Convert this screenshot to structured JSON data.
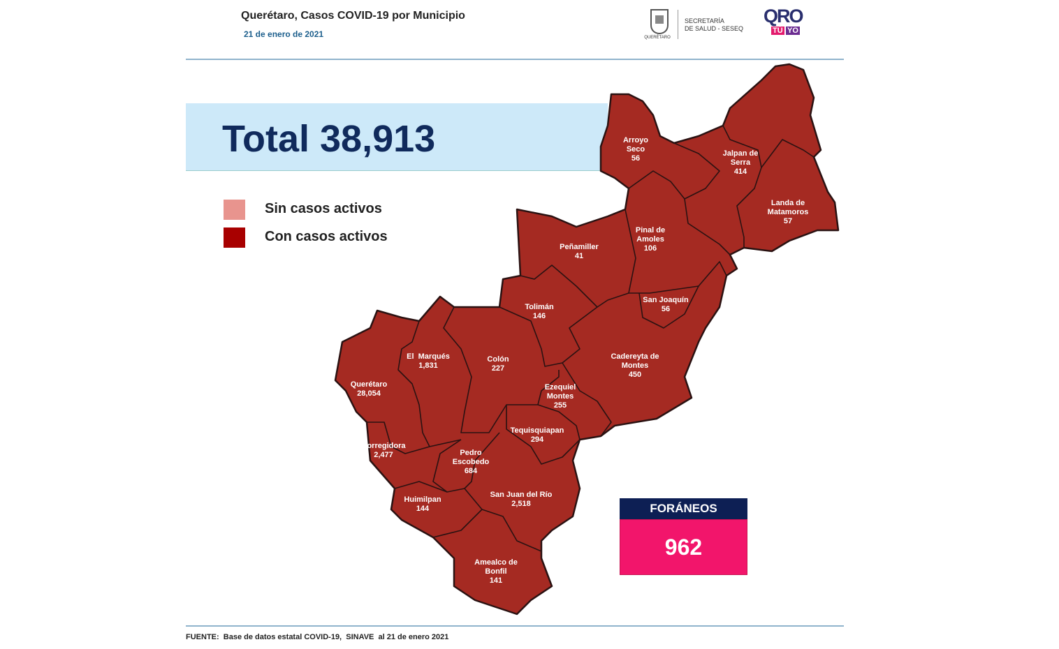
{
  "header": {
    "title": "Querétaro, Casos COVID-19 por Municipio",
    "date": "21 de enero de 2021",
    "logo_state": "QUERÉTARO",
    "logo_secretaria": "SECRETARÍA",
    "logo_salud": "DE SALUD - SESEQ",
    "logo_qro": "QRO",
    "logo_tu": "TÚ",
    "logo_yo": "YO"
  },
  "total": {
    "label": "Total",
    "value": "38,913"
  },
  "legend": [
    {
      "label": "Sin casos activos",
      "color": "#e8948e"
    },
    {
      "label": "Con casos activos",
      "color": "#a80000"
    }
  ],
  "municipalities": [
    {
      "name": "Arroyo Seco",
      "cases": "56"
    },
    {
      "name": "Jalpan de Serra",
      "cases": "414"
    },
    {
      "name": "Landa de Matamoros",
      "cases": "57"
    },
    {
      "name": "Pinal de Amoles",
      "cases": "106"
    },
    {
      "name": "Peñamiller",
      "cases": "41"
    },
    {
      "name": "San Joaquín",
      "cases": "56"
    },
    {
      "name": "Tolimán",
      "cases": "146"
    },
    {
      "name": "Cadereyta de Montes",
      "cases": "450"
    },
    {
      "name": "El  Marqués",
      "cases": "1,831"
    },
    {
      "name": "Colón",
      "cases": "227"
    },
    {
      "name": "Ezequiel Montes",
      "cases": "255"
    },
    {
      "name": "Querétaro",
      "cases": "28,054"
    },
    {
      "name": "Tequisquiapan",
      "cases": "294"
    },
    {
      "name": "Corregidora",
      "cases": "2,477"
    },
    {
      "name": "Pedro Escobedo",
      "cases": "684"
    },
    {
      "name": "San Juan del Río",
      "cases": "2,518"
    },
    {
      "name": "Huimilpan",
      "cases": "144"
    },
    {
      "name": "Amealco de Bonfil",
      "cases": "141"
    }
  ],
  "foraneos": {
    "label": "FORÁNEOS",
    "value": "962"
  },
  "footer": "FUENTE:  Base de datos estatal COVID-19,  SINAVE  al 21 de enero 2021"
}
